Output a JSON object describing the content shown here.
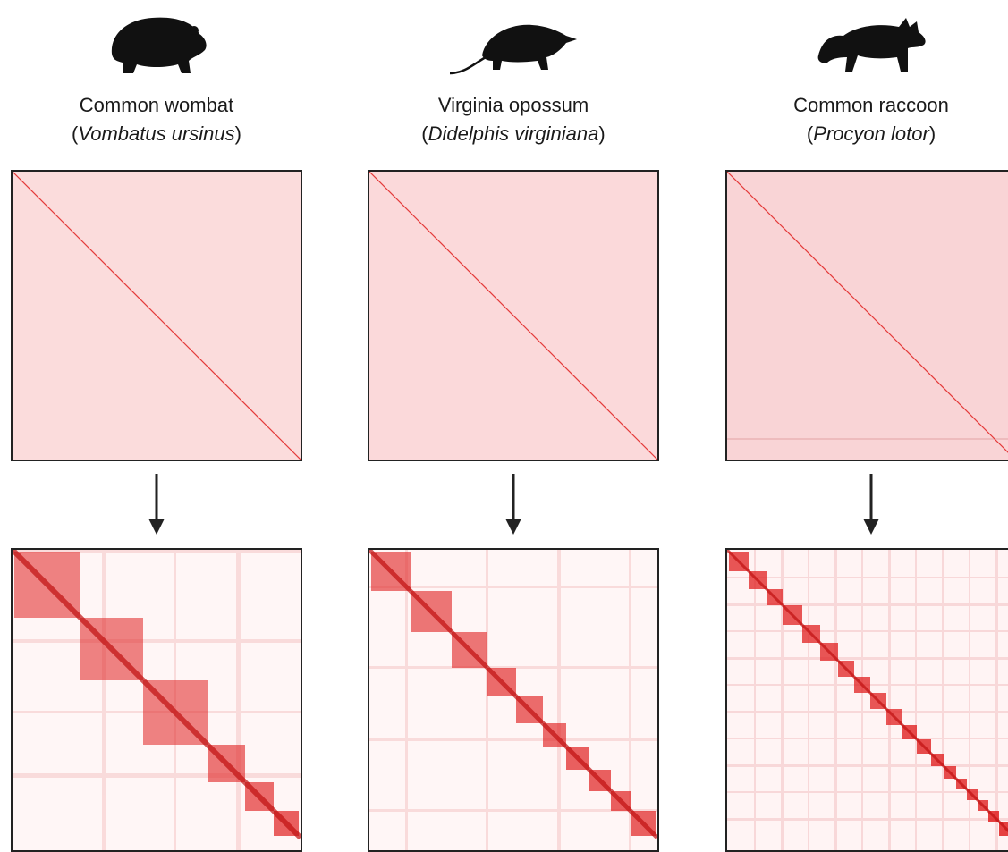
{
  "species": [
    {
      "common_name": "Common wombat",
      "scientific_name": "Vombatus ursinus",
      "silhouette_icon": "wombat-silhouette-icon"
    },
    {
      "common_name": "Virginia opossum",
      "scientific_name": "Didelphis virginiana",
      "silhouette_icon": "opossum-silhouette-icon"
    },
    {
      "common_name": "Common raccoon",
      "scientific_name": "Procyon lotor",
      "silhouette_icon": "raccoon-silhouette-icon"
    }
  ],
  "colors": {
    "map_background_raw": "#fbdcdc",
    "map_signal": "#e02020",
    "map_background_final": "#fff6f6",
    "arrow": "#222222"
  }
}
